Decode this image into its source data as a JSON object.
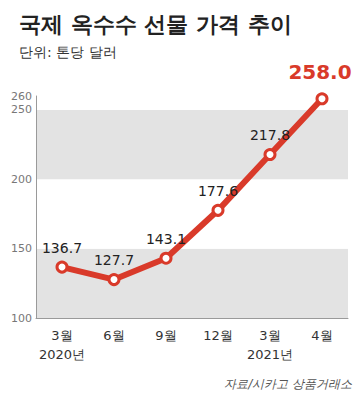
{
  "chart_data": {
    "type": "line",
    "title": "국제 옥수수 선물 가격 추이",
    "subtitle": "단위: 톤당 달러",
    "annotations": [
      "자료/시카고 상품거래소"
    ],
    "categories": [
      "3월\n2020년",
      "6월",
      "9월",
      "12월",
      "3월\n2021년",
      "4월"
    ],
    "values": [
      136.7,
      127.7,
      143.1,
      177.6,
      217.8,
      258.0
    ],
    "value_labels": [
      "136.7",
      "127.7",
      "143.1",
      "177.6",
      "217.8",
      "258.0"
    ],
    "color": "#d93a2a",
    "marker": "circle",
    "ylim": [
      100,
      260
    ],
    "yticks": [
      100,
      150,
      200,
      250
    ],
    "grid": true,
    "data_labels": true
  }
}
